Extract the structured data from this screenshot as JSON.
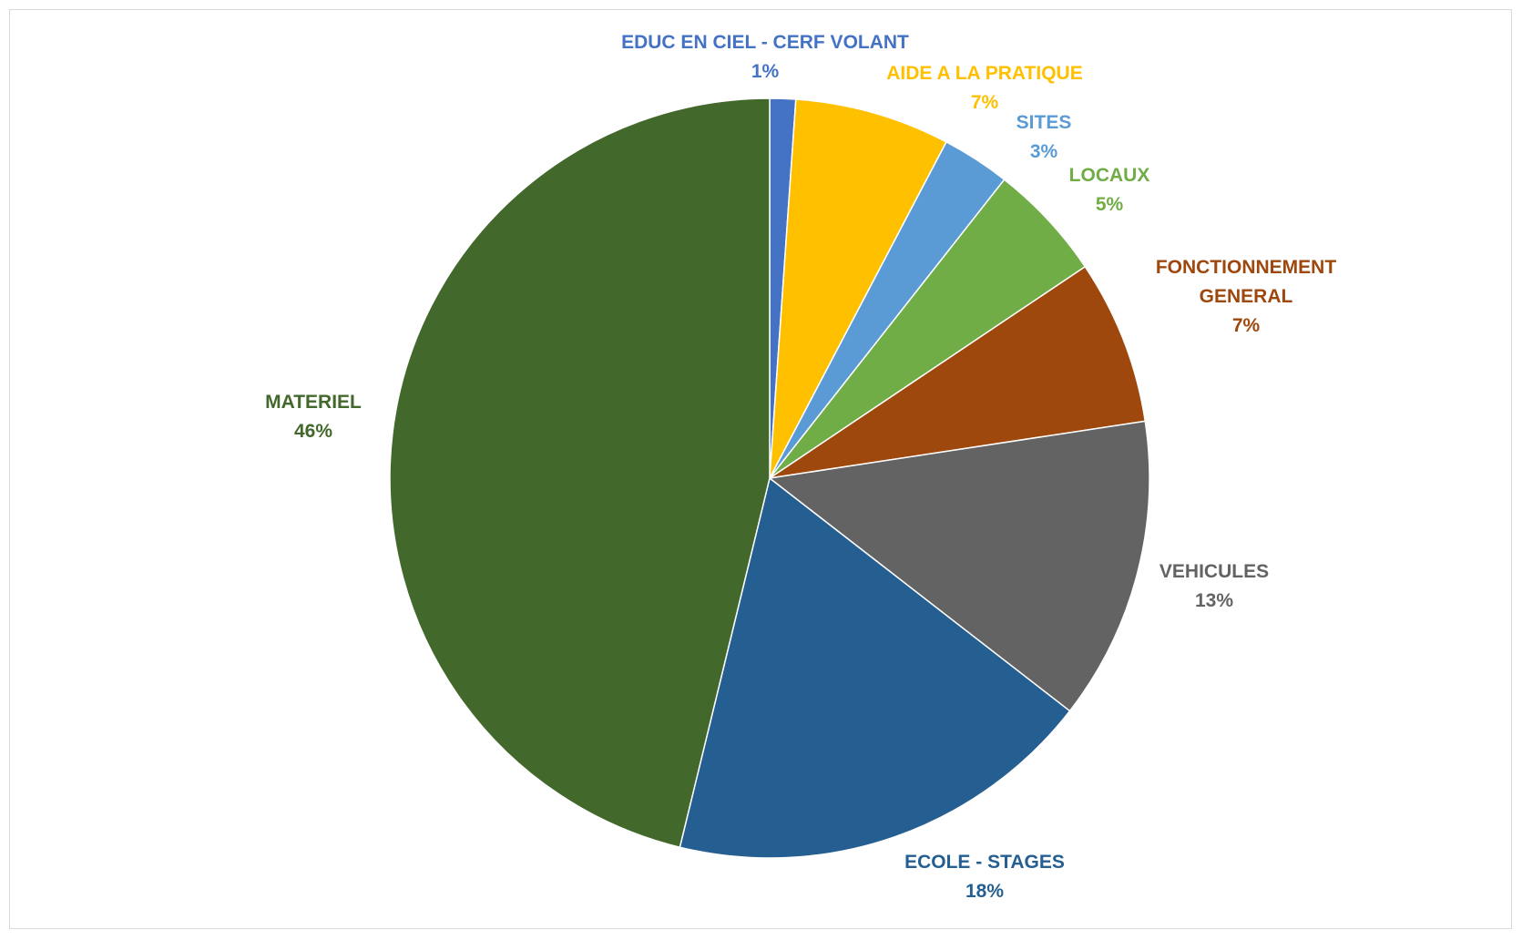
{
  "chart_data": {
    "type": "pie",
    "title": "",
    "start_angle_deg": 0,
    "direction": "clockwise",
    "slices": [
      {
        "label": "EDUC EN CIEL - CERF VOLANT",
        "label_lines": [
          "EDUC EN CIEL - CERF VOLANT"
        ],
        "value": 1.1,
        "percent_label": "1%",
        "color": "#4472C4"
      },
      {
        "label": "AIDE A LA PRATIQUE",
        "label_lines": [
          "AIDE A LA PRATIQUE"
        ],
        "value": 6.6,
        "percent_label": "7%",
        "color": "#FFC000"
      },
      {
        "label": "SITES",
        "label_lines": [
          "SITES"
        ],
        "value": 2.9,
        "percent_label": "3%",
        "color": "#5B9BD5"
      },
      {
        "label": "LOCAUX",
        "label_lines": [
          "LOCAUX"
        ],
        "value": 5.0,
        "percent_label": "5%",
        "color": "#70AD47"
      },
      {
        "label": "FONCTIONNEMENT GENERAL",
        "label_lines": [
          "FONCTIONNEMENT",
          "GENERAL"
        ],
        "value": 7.0,
        "percent_label": "7%",
        "color": "#9E480E"
      },
      {
        "label": "VEHICULES",
        "label_lines": [
          "VEHICULES"
        ],
        "value": 12.9,
        "percent_label": "13%",
        "color": "#636363"
      },
      {
        "label": "ECOLE - STAGES",
        "label_lines": [
          "ECOLE - STAGES"
        ],
        "value": 18.3,
        "percent_label": "18%",
        "color": "#255E91"
      },
      {
        "label": "MATERIEL",
        "label_lines": [
          "MATERIEL"
        ],
        "value": 46.2,
        "percent_label": "46%",
        "color": "#43682B"
      }
    ]
  }
}
